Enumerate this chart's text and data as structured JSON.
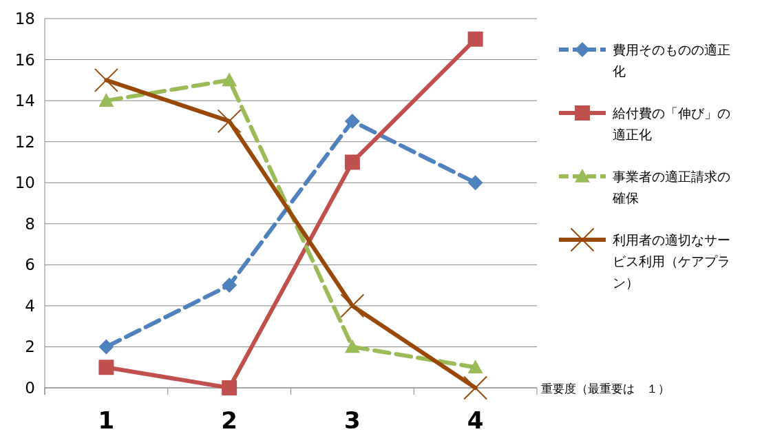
{
  "chart_data": {
    "type": "line",
    "categories": [
      "1",
      "2",
      "3",
      "4"
    ],
    "xlabel": "重要度（最重要は　１）",
    "ylim": [
      0,
      18
    ],
    "yticks": [
      0,
      2,
      4,
      6,
      8,
      10,
      12,
      14,
      16,
      18
    ],
    "grid": "y",
    "legend": "right",
    "series": [
      {
        "name": "費用そのものの適正化",
        "color": "#4f81bd",
        "marker": "diamond",
        "line_style": "dashed",
        "values": [
          2,
          5,
          13,
          10
        ]
      },
      {
        "name": "給付費の「伸び」の適正化",
        "color": "#c0504d",
        "marker": "square",
        "line_style": "solid",
        "values": [
          1,
          0,
          11,
          17
        ]
      },
      {
        "name": "事業者の適正請求の確保",
        "color": "#9bbb59",
        "marker": "triangle",
        "line_style": "dashed",
        "values": [
          14,
          15,
          2,
          1
        ]
      },
      {
        "name": "利用者の適切なサービス利用（ケアプラン）",
        "color": "#984807",
        "marker": "cross",
        "line_style": "solid",
        "values": [
          15,
          13,
          4,
          0
        ]
      }
    ]
  }
}
